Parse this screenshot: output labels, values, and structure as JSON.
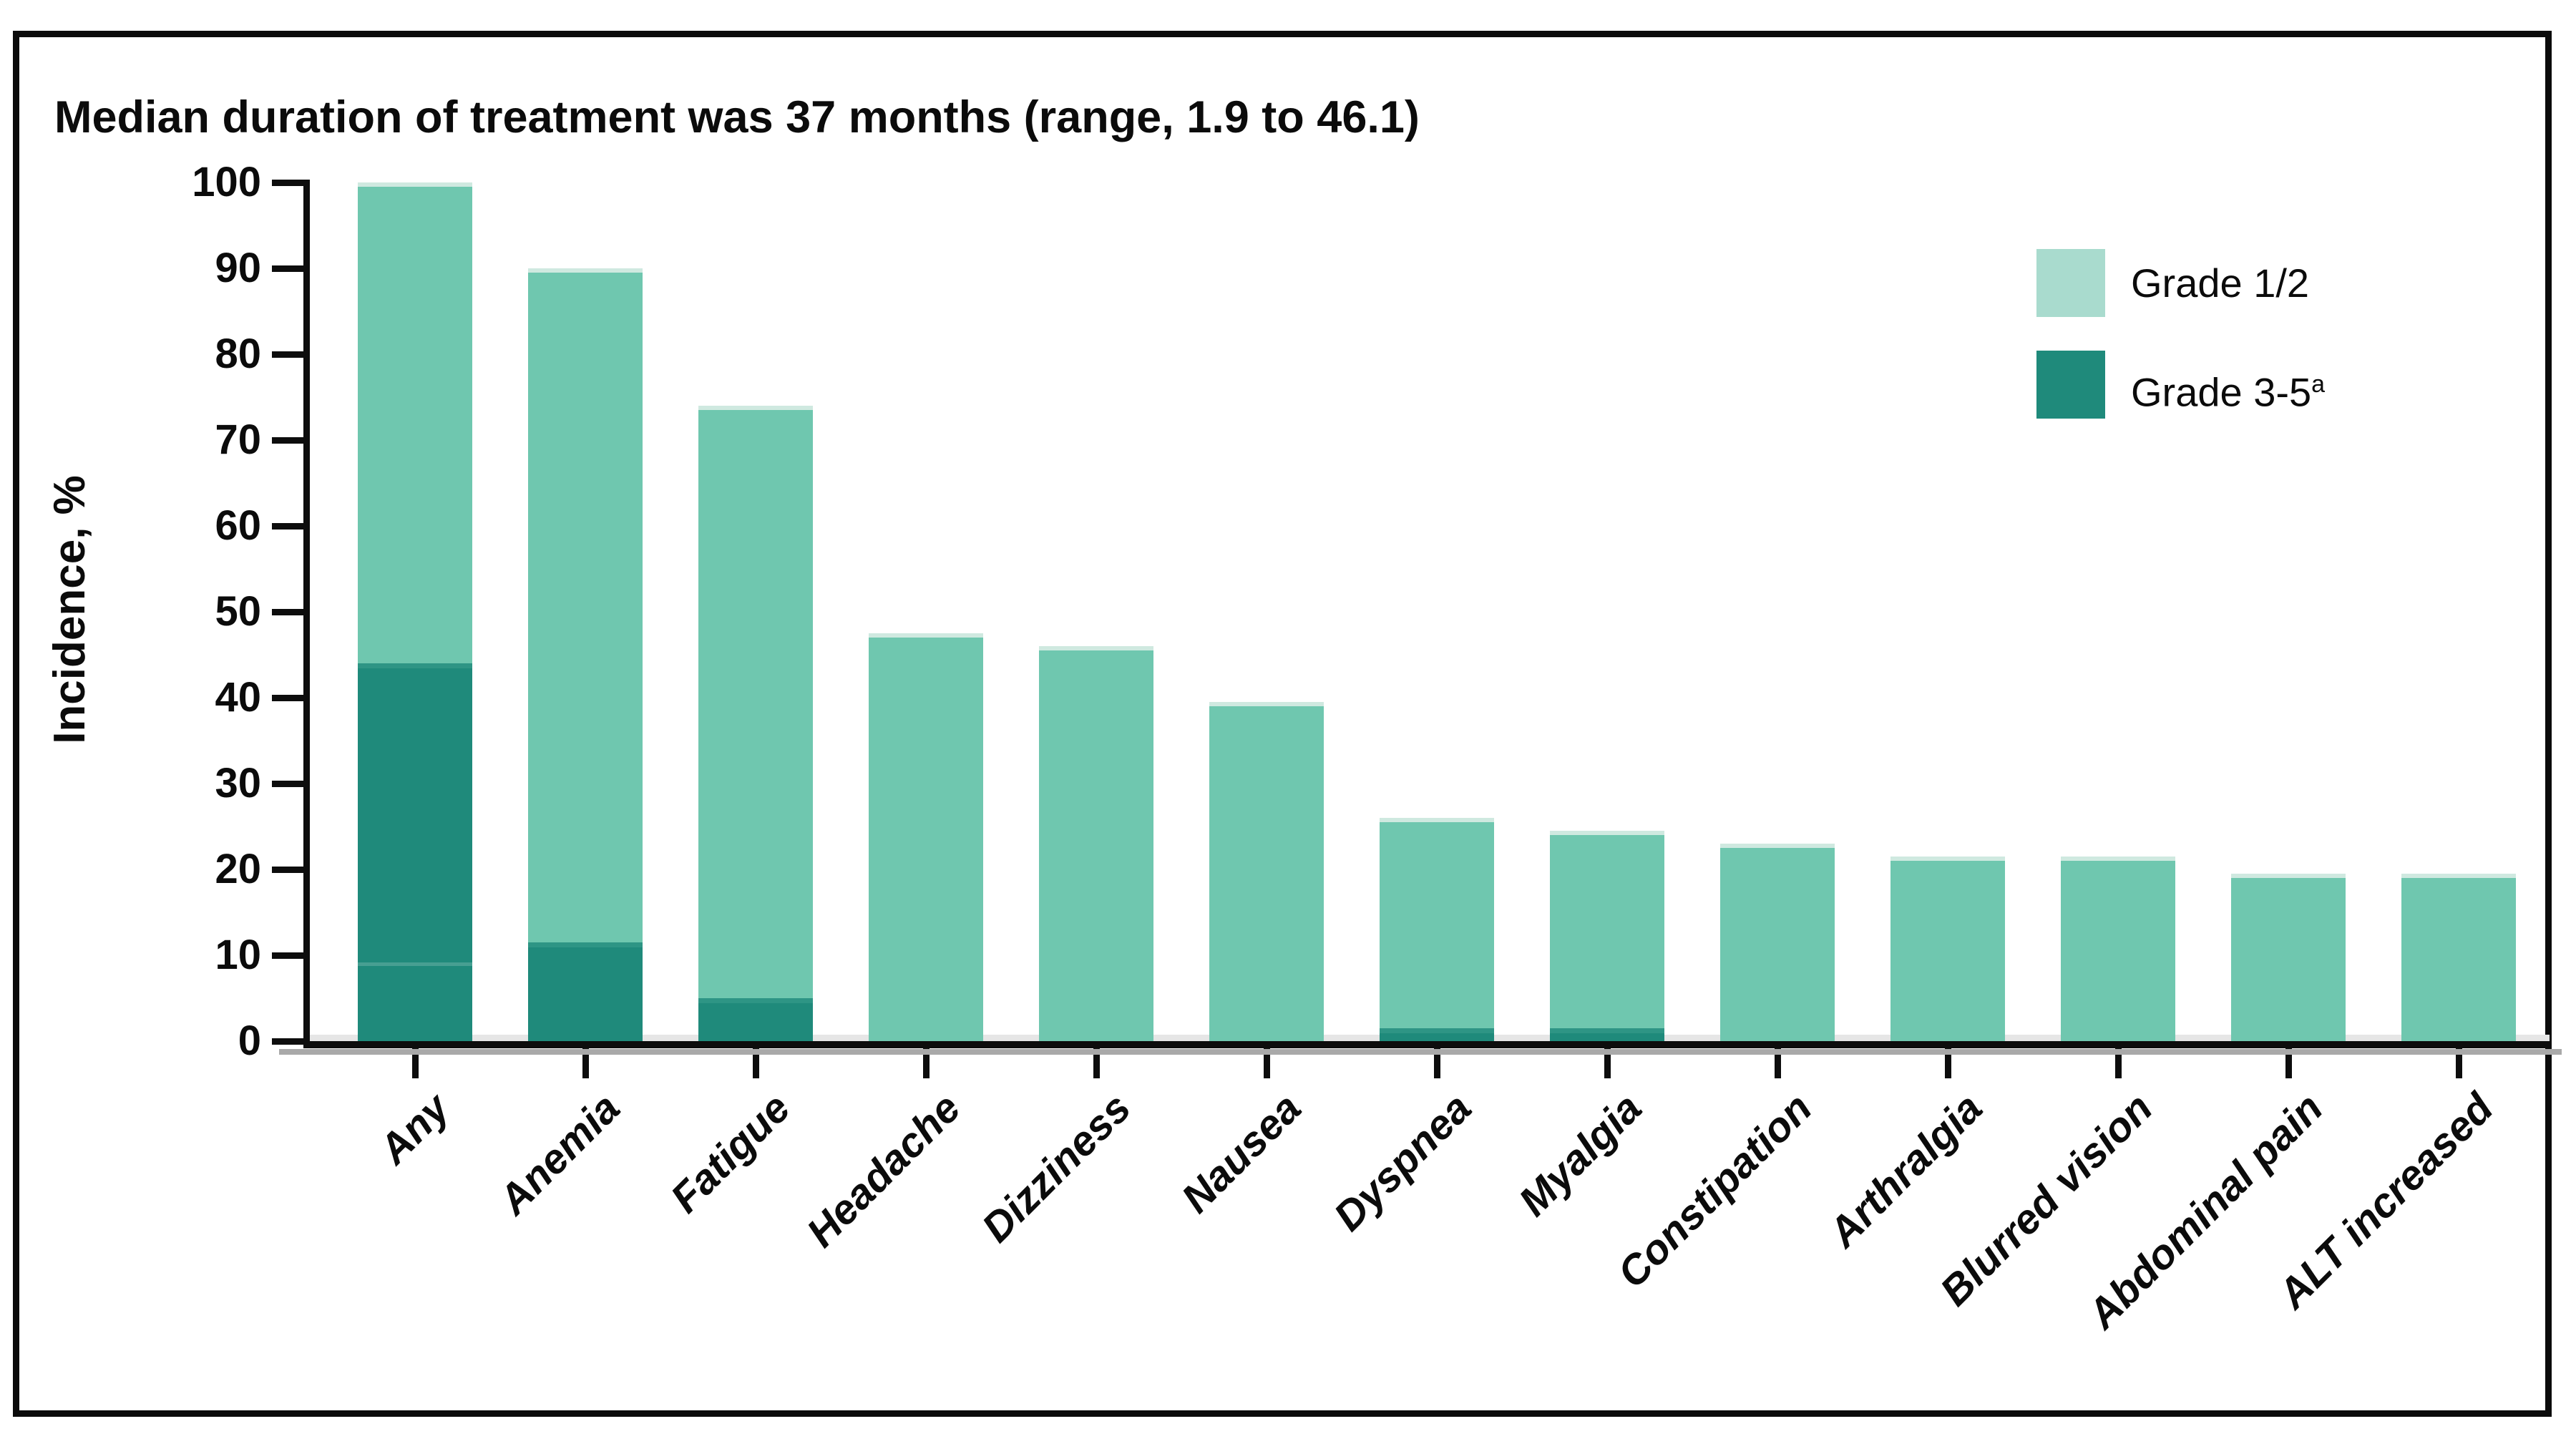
{
  "figure": {
    "border_color": "#0b0b0b",
    "background_color": "#ffffff"
  },
  "chart_data": {
    "type": "bar",
    "stacked": true,
    "title": "Median duration of treatment was 37 months (range, 1.9 to 46.1)",
    "xlabel": "",
    "ylabel": "Incidence, %",
    "ylim": [
      0,
      100
    ],
    "yticks": [
      0,
      10,
      20,
      30,
      40,
      50,
      60,
      70,
      80,
      90,
      100
    ],
    "grid": false,
    "legend_position": "upper right",
    "categories": [
      "Any",
      "Anemia",
      "Fatigue",
      "Headache",
      "Dizziness",
      "Nausea",
      "Dyspnea",
      "Myalgia",
      "Constipation",
      "Arthralgia",
      "Blurred vision",
      "Abdominal pain",
      "ALT increased"
    ],
    "totals": [
      100,
      90,
      74,
      47.5,
      46,
      39.5,
      26,
      24.5,
      23,
      21.5,
      21.5,
      19.5,
      19.5
    ],
    "series": [
      {
        "name": "Grade 1/2",
        "color": "#6fc7af",
        "values": [
          56,
          78.5,
          69,
          47.5,
          46,
          39.5,
          24.5,
          23,
          23,
          21.5,
          21.5,
          19.5,
          19.5
        ]
      },
      {
        "name": "Grade 3-5",
        "color": "#1f8a7b",
        "values": [
          44,
          11.5,
          5,
          0,
          0,
          0,
          1.5,
          1.5,
          0,
          0,
          0,
          0,
          0
        ]
      }
    ],
    "annotations": {
      "any_bar_inner_segment_line_at_percent": 8.75
    }
  },
  "legend": {
    "items": [
      {
        "label": "Grade 1/2",
        "superscript": "",
        "swatch_color": "#a9dbce"
      },
      {
        "label": "Grade 3-5",
        "superscript": "a",
        "swatch_color": "#1f8a7b"
      }
    ]
  },
  "colors": {
    "bar_grade12": "#6fc7af",
    "bar_grade12_cap": "#cfe9e0",
    "bar_grade35": "#1f8a7b",
    "bar_grade35_cap": "#2e9585",
    "axis": "#0d0d0d",
    "text": "#0b0b0b"
  }
}
